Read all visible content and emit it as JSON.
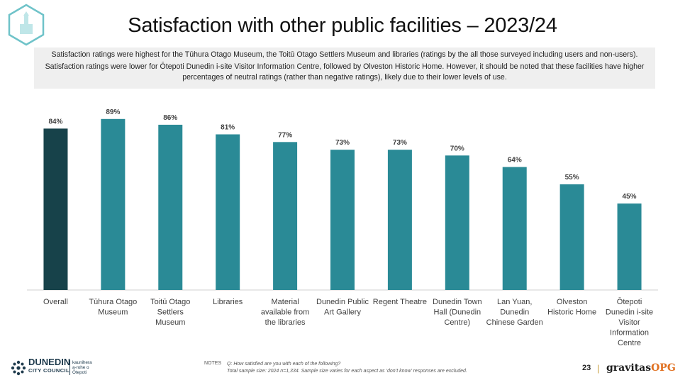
{
  "title": "Satisfaction with other public facilities – 2023/24",
  "summary": {
    "line1": "Satisfaction ratings were highest for the Tūhura Otago Museum, the Toitū Otago Settlers Museum and libraries (ratings by the all those surveyed including users and non-users).",
    "line2": "Satisfaction ratings were lower for Ōtepoti Dunedin i-site Visitor Information Centre, followed by Olveston Historic Home. However, it should be noted that these facilities have higher percentages of neutral ratings (rather than negative ratings), likely due to their lower levels of use."
  },
  "chart_data": {
    "type": "bar",
    "categories": [
      "Overall",
      "Tūhura Otago Museum",
      "Toitū Otago Settlers Museum",
      "Libraries",
      "Material available from the libraries",
      "Dunedin Public Art Gallery",
      "Regent Theatre",
      "Dunedin Town Hall (Dunedin Centre)",
      "Lan Yuan, Dunedin Chinese Garden",
      "Olveston Historic Home",
      "Ōtepoti Dunedin i-site Visitor Information Centre"
    ],
    "category_lines": [
      [
        "Overall"
      ],
      [
        "Tūhura Otago",
        "Museum"
      ],
      [
        "Toitū Otago",
        "Settlers",
        "Museum"
      ],
      [
        "Libraries"
      ],
      [
        "Material",
        "available from",
        "the libraries"
      ],
      [
        "Dunedin Public",
        "Art Gallery"
      ],
      [
        "Regent Theatre"
      ],
      [
        "Dunedin Town",
        "Hall (Dunedin",
        "Centre)"
      ],
      [
        "Lan Yuan,",
        "Dunedin",
        "Chinese Garden"
      ],
      [
        "Olveston",
        "Historic Home"
      ],
      [
        "Ōtepoti",
        "Dunedin i-site",
        "Visitor",
        "Information",
        "Centre"
      ]
    ],
    "values": [
      84,
      89,
      86,
      81,
      77,
      73,
      73,
      70,
      64,
      55,
      45
    ],
    "value_labels": [
      "84%",
      "89%",
      "86%",
      "81%",
      "77%",
      "73%",
      "73%",
      "70%",
      "64%",
      "55%",
      "45%"
    ],
    "ylim": [
      0,
      100
    ],
    "grid": false,
    "colors": {
      "highlight": "#17424a",
      "bar": "#2a8a96",
      "axis": "#d0d0d0"
    },
    "highlight_index": 0
  },
  "notes": {
    "label": "NOTES",
    "line1": "Q: How satisfied are you with each of the following?",
    "line2": "Total sample size: 2024 n=1,334. Sample size varies  for each aspect as ‘don’t know’ responses are excluded."
  },
  "footer": {
    "page_number": "23",
    "separator": "|",
    "brand_main": "gravitas",
    "brand_accent": "OPG",
    "council_name": "DUNEDIN",
    "council_sub": "CITY COUNCIL",
    "council_maori_1": "kaunihera",
    "council_maori_2": "a-rohe o",
    "council_maori_3": "Ōtepoti"
  }
}
